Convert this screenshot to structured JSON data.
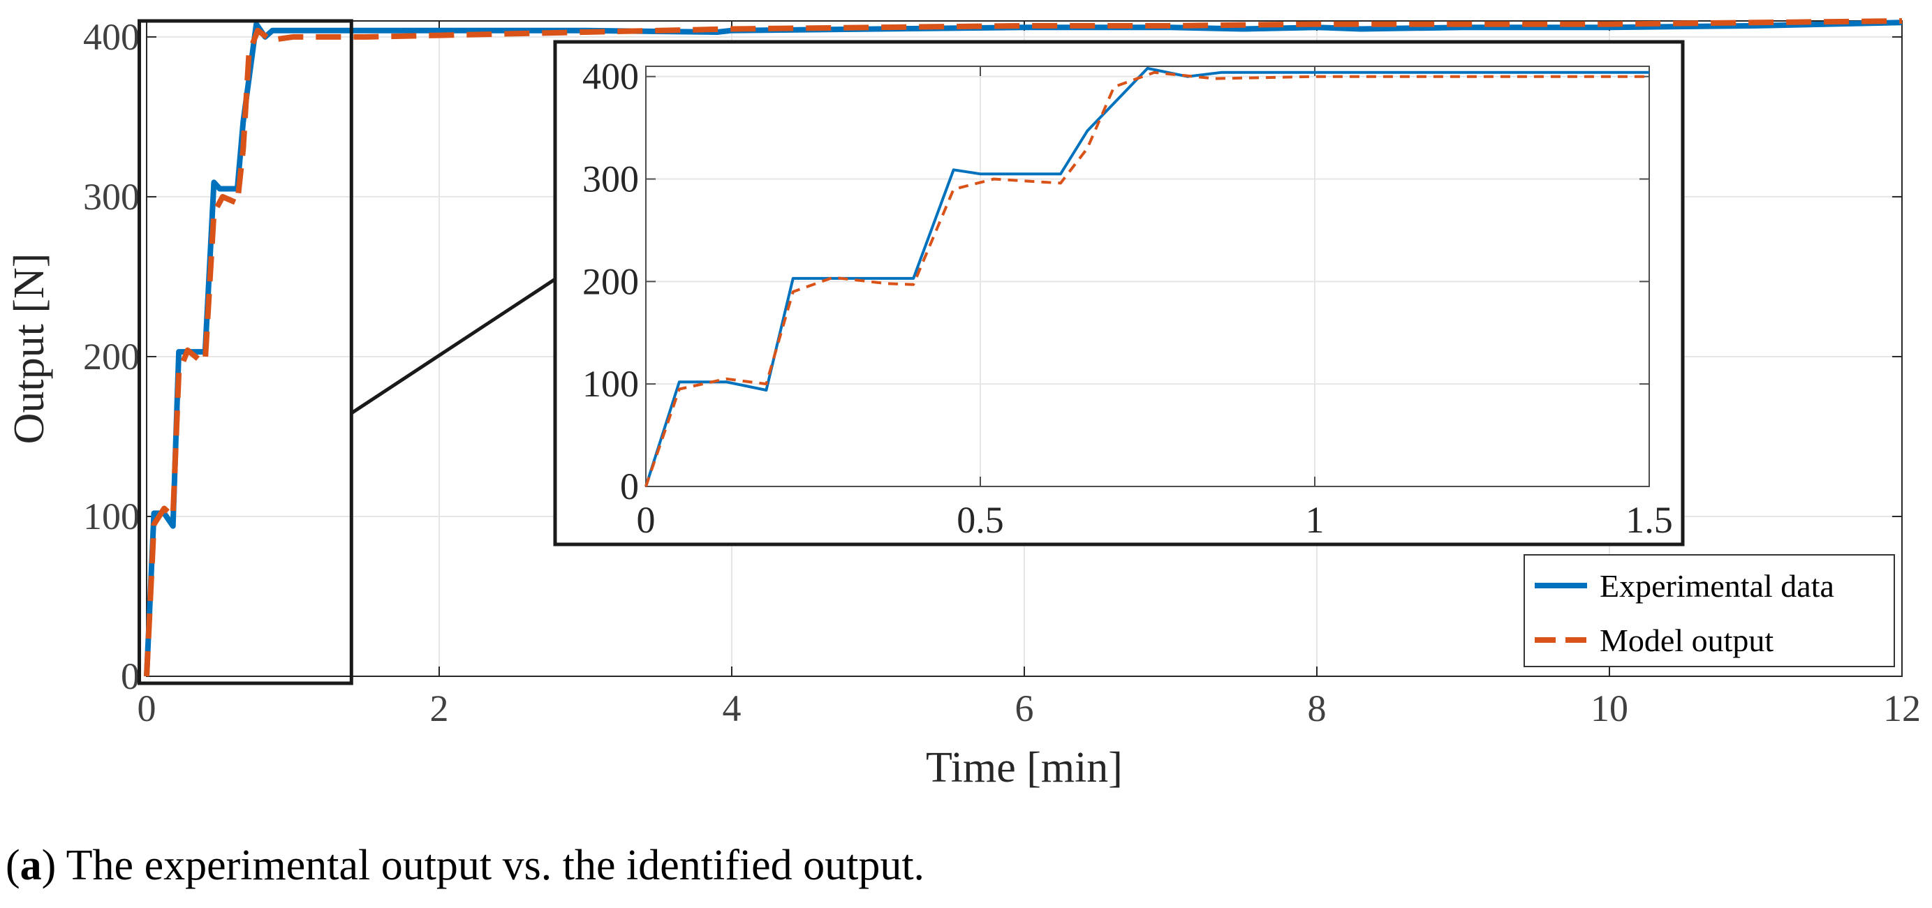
{
  "caption": {
    "prefix": "(",
    "label": "a",
    "text": ") The experimental output vs. the identified output."
  },
  "colors": {
    "experimental": "#0072BD",
    "model": "#D95319",
    "grid": "#e6e6e6",
    "axis": "#262626"
  },
  "chart_data": [
    {
      "type": "line",
      "title": "",
      "xlabel": "Time [min]",
      "ylabel": "Output [N]",
      "xlim": [
        0,
        12
      ],
      "ylim": [
        0,
        410
      ],
      "xticks": [
        0,
        2,
        4,
        6,
        8,
        10,
        12
      ],
      "yticks": [
        0,
        100,
        200,
        300,
        400
      ],
      "grid": true,
      "legend": "bottom-right",
      "series": [
        {
          "name": "Experimental data",
          "x": [
            0,
            0.05,
            0.12,
            0.18,
            0.22,
            0.36,
            0.4,
            0.46,
            0.5,
            0.62,
            0.66,
            0.75,
            0.81,
            0.86,
            1.0,
            1.5,
            2.0,
            3.0,
            3.9,
            4.0,
            5.0,
            6.0,
            7.0,
            7.5,
            8.0,
            8.3,
            9.0,
            10.0,
            11.0,
            12.0
          ],
          "y": [
            0,
            102,
            102,
            94,
            203,
            203,
            203,
            309,
            305,
            305,
            347,
            408,
            400,
            404,
            404,
            404,
            404,
            404,
            403,
            404,
            405,
            406,
            406,
            405,
            406,
            405,
            406,
            406,
            407,
            409
          ]
        },
        {
          "name": "Model output",
          "x": [
            0,
            0.05,
            0.12,
            0.18,
            0.22,
            0.28,
            0.36,
            0.4,
            0.46,
            0.52,
            0.62,
            0.66,
            0.7,
            0.76,
            0.85,
            1.0,
            1.5,
            2.0,
            3.0,
            4.0,
            5.0,
            6.0,
            7.0,
            8.0,
            9.0,
            10.0,
            11.0,
            12.0
          ],
          "y": [
            0,
            95,
            105,
            100,
            190,
            204,
            198,
            197,
            290,
            300,
            296,
            330,
            390,
            404,
            398,
            400,
            400,
            401,
            403,
            405,
            406,
            407,
            407,
            408,
            408,
            408,
            409,
            410
          ]
        }
      ]
    },
    {
      "type": "line",
      "title": "",
      "xlabel": "",
      "ylabel": "",
      "xlim": [
        0,
        1.5
      ],
      "ylim": [
        0,
        410
      ],
      "xticks": [
        0,
        0.5,
        1,
        1.5
      ],
      "xtick_labels": [
        "0",
        "0.5",
        "1",
        "1.5"
      ],
      "yticks": [
        0,
        100,
        200,
        300,
        400
      ],
      "grid": true,
      "series": [
        {
          "name": "Experimental data",
          "x": [
            0,
            0.05,
            0.12,
            0.18,
            0.22,
            0.36,
            0.4,
            0.46,
            0.5,
            0.62,
            0.66,
            0.75,
            0.81,
            0.86,
            1.0,
            1.5
          ],
          "y": [
            0,
            102,
            102,
            94,
            203,
            203,
            203,
            309,
            305,
            305,
            347,
            408,
            400,
            404,
            404,
            404
          ]
        },
        {
          "name": "Model output",
          "x": [
            0,
            0.05,
            0.12,
            0.18,
            0.22,
            0.28,
            0.36,
            0.4,
            0.46,
            0.52,
            0.62,
            0.66,
            0.7,
            0.76,
            0.85,
            1.0,
            1.5
          ],
          "y": [
            0,
            95,
            105,
            100,
            190,
            204,
            198,
            197,
            290,
            300,
            296,
            330,
            390,
            404,
            398,
            400,
            400
          ]
        }
      ]
    }
  ]
}
